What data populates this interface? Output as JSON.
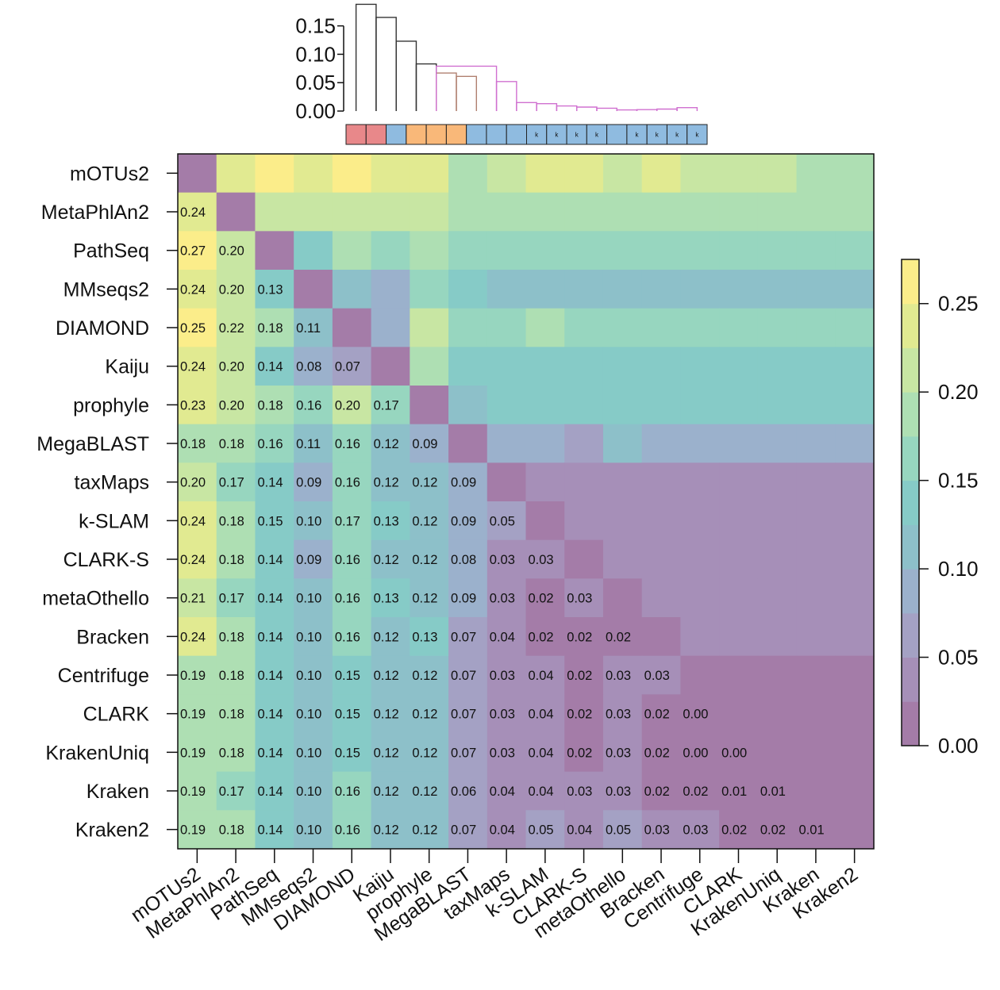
{
  "chart_data": {
    "type": "heatmap",
    "title": "",
    "labels": [
      "mOTUs2",
      "MetaPhlAn2",
      "PathSeq",
      "MMseqs2",
      "DIAMOND",
      "Kaiju",
      "prophyle",
      "MegaBLAST",
      "taxMaps",
      "k-SLAM",
      "CLARK-S",
      "metaOthello",
      "Bracken",
      "Centrifuge",
      "CLARK",
      "KrakenUniq",
      "Kraken",
      "Kraken2"
    ],
    "lower_values": [
      [],
      [
        "0.24"
      ],
      [
        "0.27",
        "0.20"
      ],
      [
        "0.24",
        "0.20",
        "0.13"
      ],
      [
        "0.25",
        "0.22",
        "0.18",
        "0.11"
      ],
      [
        "0.24",
        "0.20",
        "0.14",
        "0.08",
        "0.07"
      ],
      [
        "0.23",
        "0.20",
        "0.18",
        "0.16",
        "0.20",
        "0.17"
      ],
      [
        "0.18",
        "0.18",
        "0.16",
        "0.11",
        "0.16",
        "0.12",
        "0.09"
      ],
      [
        "0.20",
        "0.17",
        "0.14",
        "0.09",
        "0.16",
        "0.12",
        "0.12",
        "0.09"
      ],
      [
        "0.24",
        "0.18",
        "0.15",
        "0.10",
        "0.17",
        "0.13",
        "0.12",
        "0.09",
        "0.05"
      ],
      [
        "0.24",
        "0.18",
        "0.14",
        "0.09",
        "0.16",
        "0.12",
        "0.12",
        "0.08",
        "0.03",
        "0.03"
      ],
      [
        "0.21",
        "0.17",
        "0.14",
        "0.10",
        "0.16",
        "0.13",
        "0.12",
        "0.09",
        "0.03",
        "0.02",
        "0.03"
      ],
      [
        "0.24",
        "0.18",
        "0.14",
        "0.10",
        "0.16",
        "0.12",
        "0.13",
        "0.07",
        "0.04",
        "0.02",
        "0.02",
        "0.02"
      ],
      [
        "0.19",
        "0.18",
        "0.14",
        "0.10",
        "0.15",
        "0.12",
        "0.12",
        "0.07",
        "0.03",
        "0.04",
        "0.02",
        "0.03",
        "0.03"
      ],
      [
        "0.19",
        "0.18",
        "0.14",
        "0.10",
        "0.15",
        "0.12",
        "0.12",
        "0.07",
        "0.03",
        "0.04",
        "0.02",
        "0.03",
        "0.02",
        "0.00"
      ],
      [
        "0.19",
        "0.18",
        "0.14",
        "0.10",
        "0.15",
        "0.12",
        "0.12",
        "0.07",
        "0.03",
        "0.04",
        "0.02",
        "0.03",
        "0.02",
        "0.00",
        "0.00"
      ],
      [
        "0.19",
        "0.17",
        "0.14",
        "0.10",
        "0.16",
        "0.12",
        "0.12",
        "0.06",
        "0.04",
        "0.04",
        "0.03",
        "0.03",
        "0.02",
        "0.02",
        "0.01",
        "0.01"
      ],
      [
        "0.19",
        "0.18",
        "0.14",
        "0.10",
        "0.16",
        "0.12",
        "0.12",
        "0.07",
        "0.04",
        "0.05",
        "0.04",
        "0.05",
        "0.03",
        "0.03",
        "0.02",
        "0.02",
        "0.01"
      ]
    ],
    "upper_values": [
      [
        null,
        0.23,
        0.26,
        0.23,
        0.26,
        0.24,
        0.24,
        0.18,
        0.21,
        0.23,
        0.23,
        0.21,
        0.24,
        0.21,
        0.21,
        0.21,
        0.19,
        0.19
      ],
      [
        null,
        null,
        0.21,
        0.21,
        0.21,
        0.21,
        0.21,
        0.19,
        0.19,
        0.19,
        0.19,
        0.19,
        0.19,
        0.19,
        0.19,
        0.19,
        0.19,
        0.19
      ],
      [
        null,
        null,
        null,
        0.14,
        0.18,
        0.16,
        0.18,
        0.16,
        0.16,
        0.16,
        0.16,
        0.16,
        0.16,
        0.16,
        0.16,
        0.16,
        0.16,
        0.16
      ],
      [
        null,
        null,
        null,
        null,
        0.11,
        0.08,
        0.16,
        0.13,
        0.11,
        0.11,
        0.11,
        0.11,
        0.11,
        0.11,
        0.11,
        0.11,
        0.11,
        0.11
      ],
      [
        null,
        null,
        null,
        null,
        null,
        0.08,
        0.21,
        0.16,
        0.16,
        0.19,
        0.16,
        0.16,
        0.16,
        0.16,
        0.16,
        0.16,
        0.16,
        0.16
      ],
      [
        null,
        null,
        null,
        null,
        null,
        null,
        0.18,
        0.13,
        0.13,
        0.13,
        0.13,
        0.13,
        0.13,
        0.13,
        0.13,
        0.13,
        0.13,
        0.13
      ],
      [
        null,
        null,
        null,
        null,
        null,
        null,
        null,
        0.11,
        0.13,
        0.13,
        0.13,
        0.13,
        0.13,
        0.13,
        0.13,
        0.13,
        0.13,
        0.13
      ],
      [
        null,
        null,
        null,
        null,
        null,
        null,
        null,
        null,
        0.09,
        0.09,
        0.07,
        0.11,
        0.09,
        0.09,
        0.09,
        0.09,
        0.09,
        0.09
      ],
      [
        null,
        null,
        null,
        null,
        null,
        null,
        null,
        null,
        null,
        0.04,
        0.03,
        0.04,
        0.04,
        0.04,
        0.04,
        0.04,
        0.04,
        0.04
      ],
      [
        null,
        null,
        null,
        null,
        null,
        null,
        null,
        null,
        null,
        null,
        0.04,
        0.03,
        0.03,
        0.04,
        0.04,
        0.04,
        0.04,
        0.04
      ],
      [
        null,
        null,
        null,
        null,
        null,
        null,
        null,
        null,
        null,
        null,
        null,
        0.03,
        0.04,
        0.03,
        0.03,
        0.03,
        0.03,
        0.04
      ],
      [
        null,
        null,
        null,
        null,
        null,
        null,
        null,
        null,
        null,
        null,
        null,
        null,
        0.03,
        0.03,
        0.04,
        0.04,
        0.04,
        0.04
      ],
      [
        null,
        null,
        null,
        null,
        null,
        null,
        null,
        null,
        null,
        null,
        null,
        null,
        null,
        0.03,
        0.03,
        0.03,
        0.03,
        0.04
      ],
      [
        null,
        null,
        null,
        null,
        null,
        null,
        null,
        null,
        null,
        null,
        null,
        null,
        null,
        null,
        0.02,
        0.02,
        0.02,
        0.02
      ],
      [
        null,
        null,
        null,
        null,
        null,
        null,
        null,
        null,
        null,
        null,
        null,
        null,
        null,
        null,
        null,
        0.02,
        0.02,
        0.02
      ],
      [
        null,
        null,
        null,
        null,
        null,
        null,
        null,
        null,
        null,
        null,
        null,
        null,
        null,
        null,
        null,
        null,
        0.02,
        0.02
      ],
      [
        null,
        null,
        null,
        null,
        null,
        null,
        null,
        null,
        null,
        null,
        null,
        null,
        null,
        null,
        null,
        null,
        null,
        0.02
      ],
      [
        null,
        null,
        null,
        null,
        null,
        null,
        null,
        null,
        null,
        null,
        null,
        null,
        null,
        null,
        null,
        null,
        null,
        null
      ]
    ],
    "diagonal_color": "#a47ca8",
    "colorscale": {
      "range": [
        0,
        0.275
      ],
      "steps": 11,
      "colors": [
        "#a47ca8",
        "#a68fb8",
        "#a4a1c4",
        "#9bb1cc",
        "#8dc0c9",
        "#86cbc7",
        "#97d6bf",
        "#aedfb3",
        "#c8e6a3",
        "#e1ea91",
        "#fbed8a"
      ],
      "ticks": [
        "0.00",
        "0.05",
        "0.10",
        "0.15",
        "0.20",
        "0.25"
      ]
    },
    "dendrogram": {
      "axis_ticks": [
        "0.00",
        "0.05",
        "0.10",
        "0.15"
      ],
      "ylim": [
        0,
        0.19
      ],
      "tree": [
        {
          "left": 0,
          "right": 1,
          "h": 0.188,
          "color": "#333333"
        },
        {
          "left": 1,
          "right": 2,
          "h": 0.165,
          "color": "#333333"
        },
        {
          "left": 2,
          "right": 3,
          "h": 0.123,
          "color": "#333333"
        },
        {
          "left": 3,
          "right": 4,
          "h": 0.083,
          "color": "#333333"
        },
        {
          "left": 4,
          "right": 5,
          "h": 0.067,
          "color": "#b08070"
        },
        {
          "left": 5,
          "right": 6,
          "h": 0.061,
          "color": "#b08070"
        },
        {
          "left": 4,
          "right": 7,
          "h": 0.079,
          "color": "#d070d0"
        },
        {
          "left": 7,
          "right": 8,
          "h": 0.052,
          "color": "#d070d0"
        },
        {
          "left": 8,
          "right": 9,
          "h": 0.015,
          "color": "#d070d0"
        },
        {
          "left": 9,
          "right": 10,
          "h": 0.013,
          "color": "#d070d0"
        },
        {
          "left": 10,
          "right": 11,
          "h": 0.009,
          "color": "#d070d0"
        },
        {
          "left": 11,
          "right": 12,
          "h": 0.007,
          "color": "#d070d0"
        },
        {
          "left": 12,
          "right": 13,
          "h": 0.005,
          "color": "#d070d0"
        },
        {
          "left": 13,
          "right": 14,
          "h": 0.002,
          "color": "#d070d0"
        },
        {
          "left": 14,
          "right": 15,
          "h": 0.0025,
          "color": "#d070d0"
        },
        {
          "left": 15,
          "right": 16,
          "h": 0.0035,
          "color": "#d070d0"
        },
        {
          "left": 16,
          "right": 17,
          "h": 0.006,
          "color": "#d070d0"
        }
      ]
    },
    "groups": [
      {
        "color": "#e8888a",
        "k": ""
      },
      {
        "color": "#e8888a",
        "k": ""
      },
      {
        "color": "#8fbbe0",
        "k": ""
      },
      {
        "color": "#f9b879",
        "k": ""
      },
      {
        "color": "#f9b879",
        "k": ""
      },
      {
        "color": "#f9b879",
        "k": ""
      },
      {
        "color": "#8fbbe0",
        "k": ""
      },
      {
        "color": "#8fbbe0",
        "k": ""
      },
      {
        "color": "#8fbbe0",
        "k": ""
      },
      {
        "color": "#8fbbe0",
        "k": "k"
      },
      {
        "color": "#8fbbe0",
        "k": "k"
      },
      {
        "color": "#8fbbe0",
        "k": "k"
      },
      {
        "color": "#8fbbe0",
        "k": "k"
      },
      {
        "color": "#8fbbe0",
        "k": ""
      },
      {
        "color": "#8fbbe0",
        "k": "k"
      },
      {
        "color": "#8fbbe0",
        "k": "k"
      },
      {
        "color": "#8fbbe0",
        "k": "k"
      },
      {
        "color": "#8fbbe0",
        "k": "k"
      }
    ]
  }
}
